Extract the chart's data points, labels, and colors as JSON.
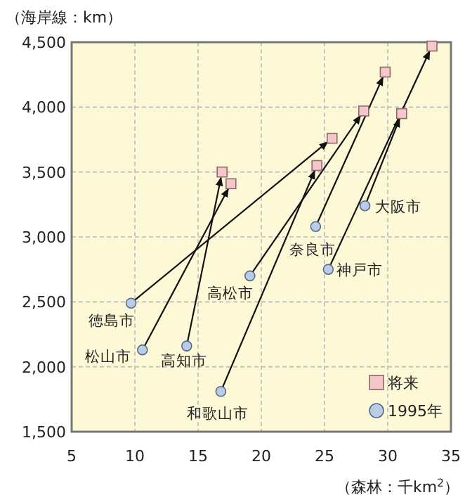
{
  "chart_data": {
    "type": "scatter",
    "xlabel": "（森林：千km$^{2}$）",
    "ylabel": "（海岸線：km）",
    "xlim": [
      5,
      35
    ],
    "xticks": [
      5,
      10,
      15,
      20,
      25,
      30,
      35
    ],
    "ylim": [
      1500,
      4500
    ],
    "yticks": [
      {
        "value": 1500,
        "label": "1,500"
      },
      {
        "value": 2000,
        "label": "2,000"
      },
      {
        "value": 2500,
        "label": "2,500"
      },
      {
        "value": 3000,
        "label": "3,000"
      },
      {
        "value": 3500,
        "label": "3,500"
      },
      {
        "value": 4000,
        "label": "4,000"
      },
      {
        "value": 4500,
        "label": "4,500"
      }
    ],
    "grid": true,
    "legend": "bottom right",
    "series": [
      {
        "name": "将来",
        "color": "#f6c6cb",
        "marker": "square",
        "x": [
          25.6,
          17.6,
          16.9,
          24.4,
          28.1,
          29.8,
          33.5,
          31.1
        ],
        "values": [
          3760,
          3410,
          3500,
          3550,
          3970,
          4270,
          4470,
          3950
        ]
      },
      {
        "name": "1995年",
        "color": "#b9cde9",
        "marker": "circle",
        "x": [
          9.7,
          10.6,
          14.1,
          16.8,
          19.1,
          24.3,
          25.3,
          28.2
        ],
        "values": [
          2490,
          2130,
          2160,
          1810,
          2700,
          3080,
          2750,
          3240
        ]
      }
    ],
    "annotations": [
      {
        "text": "徳島市",
        "x": 9.7,
        "y": 2490
      },
      {
        "text": "松山市",
        "x": 10.6,
        "y": 2130
      },
      {
        "text": "高知市",
        "x": 14.1,
        "y": 2160
      },
      {
        "text": "和歌山市",
        "x": 16.8,
        "y": 1810
      },
      {
        "text": "高松市",
        "x": 19.1,
        "y": 2700
      },
      {
        "text": "奈良市",
        "x": 24.3,
        "y": 3080
      },
      {
        "text": "神戸市",
        "x": 25.3,
        "y": 2750
      },
      {
        "text": "大阪市",
        "x": 28.2,
        "y": 3240
      }
    ]
  }
}
